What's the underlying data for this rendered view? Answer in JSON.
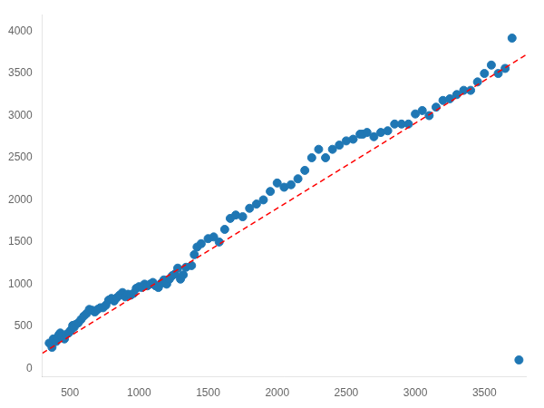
{
  "chart_data": {
    "type": "scatter",
    "xlim": [
      300,
      3800
    ],
    "xticks": [
      500,
      1000,
      1500,
      2000,
      2500,
      3000,
      3500
    ],
    "ylim": [
      -100,
      4200
    ],
    "yticks": [
      0,
      500,
      1000,
      1500,
      2000,
      2500,
      3000,
      3500,
      4000
    ],
    "grid": false,
    "series": [
      {
        "type": "scatter",
        "color": "#1f77b4",
        "marker": "circle",
        "x": [
          350,
          370,
          380,
          400,
          410,
          420,
          430,
          440,
          460,
          470,
          490,
          500,
          510,
          520,
          530,
          540,
          560,
          580,
          600,
          620,
          640,
          660,
          680,
          700,
          720,
          740,
          760,
          780,
          800,
          820,
          840,
          860,
          880,
          900,
          920,
          940,
          960,
          980,
          1000,
          1020,
          1040,
          1060,
          1080,
          1100,
          1120,
          1140,
          1160,
          1180,
          1200,
          1220,
          1240,
          1260,
          1280,
          1300,
          1320,
          1340,
          1380,
          1400,
          1420,
          1450,
          1500,
          1540,
          1580,
          1620,
          1660,
          1700,
          1750,
          1800,
          1850,
          1900,
          1950,
          2000,
          2050,
          2100,
          2150,
          2200,
          2250,
          2300,
          2350,
          2400,
          2450,
          2500,
          2550,
          2600,
          2620,
          2650,
          2700,
          2750,
          2800,
          2850,
          2900,
          2950,
          3000,
          3050,
          3100,
          3150,
          3200,
          3250,
          3300,
          3350,
          3400,
          3450,
          3500,
          3550,
          3600,
          3650,
          3700,
          3750
        ],
        "values": [
          300,
          250,
          350,
          320,
          370,
          400,
          420,
          380,
          350,
          400,
          420,
          440,
          460,
          510,
          490,
          520,
          540,
          580,
          620,
          650,
          700,
          690,
          670,
          700,
          720,
          720,
          750,
          810,
          830,
          800,
          840,
          870,
          900,
          850,
          880,
          870,
          890,
          950,
          970,
          960,
          1000,
          980,
          1000,
          1020,
          980,
          960,
          1010,
          1050,
          1000,
          1060,
          1100,
          1120,
          1190,
          1060,
          1110,
          1200,
          1220,
          1350,
          1440,
          1480,
          1540,
          1560,
          1500,
          1650,
          1780,
          1820,
          1800,
          1900,
          1950,
          2000,
          2100,
          2200,
          2150,
          2180,
          2250,
          2350,
          2500,
          2600,
          2500,
          2600,
          2650,
          2700,
          2720,
          2780,
          2780,
          2800,
          2750,
          2800,
          2820,
          2900,
          2900,
          2900,
          3020,
          3060,
          3000,
          3100,
          3180,
          3200,
          3250,
          3300,
          3300,
          3400,
          3500,
          3600,
          3500,
          3560,
          3920,
          100
        ]
      },
      {
        "type": "line",
        "color": "red",
        "line_style": "dashed",
        "x": [
          300,
          3800
        ],
        "values": [
          180,
          3720
        ]
      }
    ]
  }
}
